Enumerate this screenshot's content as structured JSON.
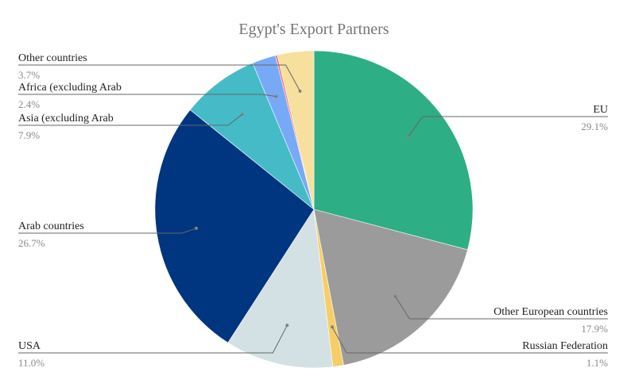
{
  "chart_data": {
    "type": "pie",
    "title": "Egypt's Export Partners",
    "slices": [
      {
        "label": "EU",
        "value": 29.1,
        "display": "29.1%",
        "color": "#2eae84"
      },
      {
        "label": "Other European countries",
        "value": 17.9,
        "display": "17.9%",
        "color": "#9b9b9b"
      },
      {
        "label": "Russian Federation",
        "value": 1.1,
        "display": "1.1%",
        "color": "#f7ce66"
      },
      {
        "label": "USA",
        "value": 11.0,
        "display": "11.0%",
        "color": "#d3e1e4"
      },
      {
        "label": "Arab countries",
        "value": 26.7,
        "display": "26.7%",
        "color": "#003580"
      },
      {
        "label": "Asia (excluding Arab",
        "value": 7.9,
        "display": "7.9%",
        "color": "#45bbc8"
      },
      {
        "label": "Africa (excluding Arab",
        "value": 2.4,
        "display": "2.4%",
        "color": "#78a9f7"
      },
      {
        "label": "",
        "value": 0.2,
        "display": "",
        "color": "#f07070"
      },
      {
        "label": "Other countries",
        "value": 3.7,
        "display": "3.7%",
        "color": "#f7e09e"
      }
    ]
  }
}
